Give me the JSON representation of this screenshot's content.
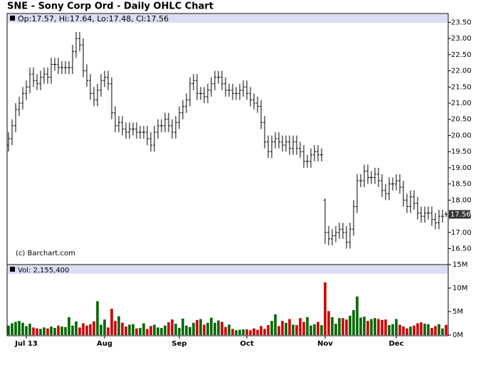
{
  "chart_data": {
    "type": "ohlc",
    "title": "SNE - Sony Corp Ord - Daily OHLC Chart",
    "header": "Op:17.57, Hi:17.64, Lo:17.48, Cl:17.56",
    "annotation": "(c) Barchart.com",
    "color": "#000000",
    "open": [
      19.7,
      19.9,
      20.3,
      20.8,
      21.0,
      21.3,
      21.5,
      21.9,
      21.7,
      21.6,
      21.8,
      21.9,
      21.8,
      22.2,
      22.2,
      22.1,
      22.1,
      22.1,
      22.1,
      22.6,
      23.0,
      22.8,
      22.0,
      21.7,
      21.3,
      21.1,
      21.4,
      21.7,
      21.8,
      21.6,
      20.7,
      20.3,
      20.4,
      20.2,
      20.1,
      20.2,
      20.2,
      20.1,
      20.1,
      20.1,
      19.9,
      19.7,
      20.1,
      20.3,
      20.3,
      20.5,
      20.3,
      20.1,
      20.4,
      20.7,
      20.9,
      21.1,
      21.6,
      21.7,
      21.3,
      21.3,
      21.2,
      21.4,
      21.6,
      21.8,
      21.8,
      21.6,
      21.4,
      21.4,
      21.3,
      21.3,
      21.4,
      21.5,
      21.3,
      21.1,
      21.0,
      20.9,
      20.4,
      19.8,
      19.5,
      19.8,
      19.9,
      19.8,
      19.7,
      19.8,
      19.6,
      19.8,
      19.6,
      19.5,
      19.2,
      19.2,
      19.4,
      19.5,
      19.4,
      18.0,
      17.0,
      16.8,
      16.9,
      17.0,
      17.1,
      17.0,
      16.7,
      17.1,
      17.8,
      18.6,
      18.6,
      18.9,
      18.7,
      18.7,
      18.8,
      18.6,
      18.3,
      18.2,
      18.5,
      18.5,
      18.6,
      18.4,
      18.0,
      17.8,
      18.1,
      17.9,
      17.6,
      17.5,
      17.6,
      17.6,
      17.4,
      17.3,
      17.5,
      17.57
    ],
    "high": [
      20.1,
      20.5,
      21.0,
      21.2,
      21.5,
      21.7,
      22.1,
      22.1,
      21.9,
      22.0,
      22.1,
      22.1,
      22.4,
      22.4,
      22.4,
      22.3,
      22.3,
      22.3,
      22.8,
      23.2,
      23.2,
      23.0,
      22.2,
      21.9,
      21.5,
      21.6,
      21.9,
      22.0,
      22.0,
      21.8,
      20.9,
      20.6,
      20.6,
      20.4,
      20.4,
      20.4,
      20.4,
      20.3,
      20.3,
      20.3,
      20.1,
      20.3,
      20.5,
      20.5,
      20.7,
      20.7,
      20.5,
      20.6,
      20.9,
      21.1,
      21.3,
      21.8,
      21.9,
      21.9,
      21.5,
      21.5,
      21.6,
      21.8,
      22.0,
      22.0,
      22.0,
      21.8,
      21.6,
      21.6,
      21.5,
      21.6,
      21.7,
      21.7,
      21.5,
      21.3,
      21.2,
      21.1,
      20.6,
      20.0,
      20.0,
      20.1,
      20.1,
      20.0,
      20.0,
      20.0,
      20.0,
      20.0,
      19.8,
      19.7,
      19.4,
      19.6,
      19.7,
      19.7,
      19.6,
      18.05,
      17.2,
      17.1,
      17.2,
      17.3,
      17.3,
      17.2,
      17.3,
      18.0,
      18.8,
      18.8,
      19.1,
      19.1,
      18.9,
      19.0,
      19.0,
      18.8,
      18.5,
      18.7,
      18.7,
      18.8,
      18.8,
      18.6,
      18.2,
      18.3,
      18.3,
      18.1,
      17.8,
      17.8,
      17.8,
      17.8,
      17.6,
      17.7,
      17.7,
      17.64
    ],
    "low": [
      19.5,
      19.7,
      20.1,
      20.6,
      20.8,
      21.1,
      21.3,
      21.5,
      21.4,
      21.4,
      21.6,
      21.6,
      21.6,
      22.0,
      21.9,
      21.9,
      21.9,
      21.9,
      21.9,
      22.4,
      22.6,
      21.8,
      21.5,
      21.1,
      20.9,
      20.9,
      21.2,
      21.5,
      21.4,
      20.5,
      20.1,
      20.1,
      20.0,
      19.9,
      19.9,
      20.0,
      19.9,
      19.9,
      19.9,
      19.7,
      19.5,
      19.5,
      19.9,
      20.1,
      20.1,
      20.1,
      19.9,
      19.9,
      20.2,
      20.5,
      20.7,
      20.9,
      21.4,
      21.1,
      21.1,
      21.0,
      21.0,
      21.2,
      21.4,
      21.6,
      21.4,
      21.2,
      21.2,
      21.1,
      21.1,
      21.1,
      21.2,
      21.1,
      20.9,
      20.8,
      20.7,
      20.2,
      19.6,
      19.3,
      19.3,
      19.6,
      19.6,
      19.5,
      19.5,
      19.4,
      19.4,
      19.4,
      19.3,
      19.0,
      19.0,
      19.0,
      19.2,
      19.2,
      19.2,
      16.65,
      16.6,
      16.6,
      16.7,
      16.8,
      16.8,
      16.5,
      16.5,
      16.9,
      17.6,
      18.4,
      18.4,
      18.5,
      18.5,
      18.5,
      18.4,
      18.1,
      18.0,
      18.0,
      18.3,
      18.3,
      18.2,
      17.8,
      17.6,
      17.6,
      17.7,
      17.4,
      17.3,
      17.3,
      17.4,
      17.2,
      17.1,
      17.1,
      17.3,
      17.48
    ],
    "close": [
      19.9,
      20.3,
      20.8,
      21.0,
      21.3,
      21.5,
      21.9,
      21.7,
      21.6,
      21.8,
      21.9,
      21.8,
      22.2,
      22.2,
      22.1,
      22.1,
      22.1,
      22.1,
      22.6,
      23.0,
      22.8,
      22.0,
      21.7,
      21.3,
      21.1,
      21.4,
      21.7,
      21.8,
      21.6,
      20.7,
      20.3,
      20.4,
      20.2,
      20.1,
      20.2,
      20.2,
      20.1,
      20.1,
      20.1,
      19.9,
      19.7,
      20.1,
      20.3,
      20.3,
      20.5,
      20.3,
      20.1,
      20.4,
      20.7,
      20.9,
      21.1,
      21.6,
      21.7,
      21.3,
      21.3,
      21.2,
      21.4,
      21.6,
      21.8,
      21.8,
      21.6,
      21.4,
      21.4,
      21.3,
      21.3,
      21.4,
      21.5,
      21.3,
      21.1,
      21.0,
      20.9,
      20.4,
      19.8,
      19.5,
      19.8,
      19.9,
      19.8,
      19.7,
      19.8,
      19.6,
      19.8,
      19.6,
      19.5,
      19.2,
      19.2,
      19.4,
      19.5,
      19.4,
      19.4,
      17.0,
      16.8,
      16.9,
      17.0,
      17.1,
      17.0,
      16.7,
      17.1,
      17.8,
      18.6,
      18.6,
      18.9,
      18.7,
      18.7,
      18.8,
      18.6,
      18.3,
      18.2,
      18.5,
      18.5,
      18.6,
      18.4,
      18.0,
      17.8,
      18.1,
      17.9,
      17.6,
      17.5,
      17.6,
      17.6,
      17.4,
      17.3,
      17.5,
      17.5,
      17.56
    ],
    "ylim": [
      16.05,
      23.75
    ],
    "yticks": [
      {
        "value": 16.5,
        "label": "16.50"
      },
      {
        "value": 17,
        "label": "17.00"
      },
      {
        "value": 17.5,
        "label": "17.50"
      },
      {
        "value": 18,
        "label": "18.00"
      },
      {
        "value": 18.5,
        "label": "18.50"
      },
      {
        "value": 19,
        "label": "19.00"
      },
      {
        "value": 19.5,
        "label": "19.50"
      },
      {
        "value": 20,
        "label": "20.00"
      },
      {
        "value": 20.5,
        "label": "20.50"
      },
      {
        "value": 21,
        "label": "21.00"
      },
      {
        "value": 21.5,
        "label": "21.50"
      },
      {
        "value": 22,
        "label": "22.00"
      },
      {
        "value": 22.5,
        "label": "22.50"
      },
      {
        "value": 23,
        "label": "23.00"
      },
      {
        "value": 23.5,
        "label": "23.50"
      }
    ],
    "xticks": [
      {
        "value": 5,
        "label": "Jul 13"
      },
      {
        "value": 27,
        "label": "Aug"
      },
      {
        "value": 48,
        "label": "Sep"
      },
      {
        "value": 67,
        "label": "Oct"
      },
      {
        "value": 89,
        "label": "Nov"
      },
      {
        "value": 109,
        "label": "Dec"
      }
    ],
    "volume": {
      "header": "Vol: 2,155,400",
      "up_color": "#006600",
      "down_color": "#cc0000",
      "values": [
        2.0,
        2.5,
        2.8,
        3.0,
        2.6,
        1.9,
        2.4,
        1.6,
        1.4,
        1.3,
        1.6,
        1.4,
        1.8,
        1.5,
        2.0,
        1.8,
        1.7,
        3.8,
        2.0,
        2.9,
        1.6,
        2.5,
        2.0,
        2.3,
        2.9,
        7.2,
        2.2,
        3.3,
        1.6,
        5.6,
        3.0,
        4.0,
        2.6,
        1.8,
        2.2,
        2.3,
        1.4,
        1.5,
        2.5,
        1.3,
        1.9,
        2.2,
        1.6,
        1.5,
        2.0,
        2.7,
        3.3,
        2.4,
        1.5,
        3.5,
        2.0,
        1.7,
        2.6,
        3.2,
        3.4,
        2.2,
        2.6,
        3.7,
        2.6,
        3.1,
        2.8,
        1.7,
        2.2,
        1.3,
        1.0,
        1.1,
        1.2,
        1.2,
        1.0,
        1.4,
        1.1,
        1.9,
        1.3,
        2.1,
        3.0,
        4.4,
        1.9,
        3.0,
        2.6,
        3.4,
        2.2,
        2.1,
        3.6,
        2.8,
        3.8,
        2.0,
        2.3,
        2.8,
        2.1,
        11.2,
        5.1,
        3.8,
        2.4,
        3.6,
        3.6,
        3.3,
        4.1,
        5.3,
        8.2,
        3.7,
        3.9,
        3.0,
        3.4,
        3.6,
        3.4,
        3.2,
        3.3,
        2.1,
        2.3,
        3.4,
        2.2,
        1.8,
        1.4,
        1.8,
        2.0,
        2.5,
        2.7,
        2.4,
        2.3,
        1.5,
        1.9,
        2.3,
        1.4,
        2.1554
      ],
      "ylim": [
        0,
        15
      ],
      "yticks": [
        {
          "value": 0,
          "label": "0M"
        },
        {
          "value": 5,
          "label": "5M"
        },
        {
          "value": 10,
          "label": "10M"
        },
        {
          "value": 15,
          "label": "15M"
        }
      ]
    }
  }
}
